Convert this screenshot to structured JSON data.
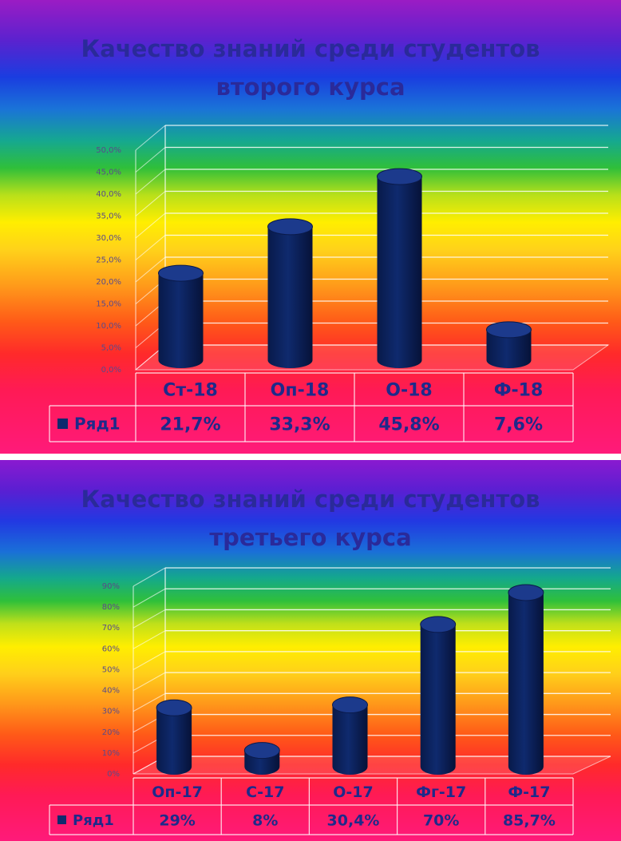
{
  "chart_data": [
    {
      "type": "bar",
      "title_line1": "Качество знаний среди студентов",
      "title_line2": "второго курса",
      "categories": [
        "Ст-18",
        "Оп-18",
        "О-18",
        "Ф-18"
      ],
      "series": [
        {
          "name": "Ряд1",
          "values": [
            21.7,
            33.3,
            45.8,
            7.6
          ]
        }
      ],
      "value_labels": [
        "21,7%",
        "33,3%",
        "45,8%",
        "7,6%"
      ],
      "yticks": [
        "0,0%",
        "5,0%",
        "10,0%",
        "15,0%",
        "20,0%",
        "25,0%",
        "30,0%",
        "35,0%",
        "40,0%",
        "45,0%",
        "50,0%"
      ],
      "ylim": [
        0,
        50
      ],
      "legend": "data table",
      "bar_color": "#0f2a6e"
    },
    {
      "type": "bar",
      "title_line1": "Качество знаний среди студентов",
      "title_line2": "третьего курса",
      "categories": [
        "Оп-17",
        "С-17",
        "О-17",
        "Фг-17",
        "Ф-17"
      ],
      "series": [
        {
          "name": "Ряд1",
          "values": [
            29,
            8,
            30.4,
            70,
            85.7
          ]
        }
      ],
      "value_labels": [
        "29%",
        "8%",
        "30,4%",
        "70%",
        "85,7%"
      ],
      "yticks": [
        "0%",
        "10%",
        "20%",
        "30%",
        "40%",
        "50%",
        "60%",
        "70%",
        "80%",
        "90%"
      ],
      "ylim": [
        0,
        90
      ],
      "legend": "data table",
      "bar_color": "#0f2a6e"
    }
  ]
}
